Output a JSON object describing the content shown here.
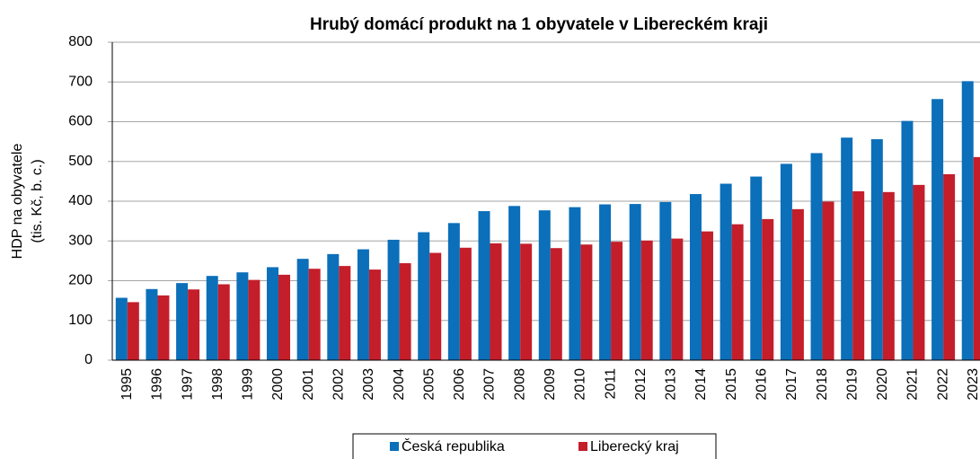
{
  "chart_data": {
    "type": "bar",
    "title": "Hrubý domácí produkt na 1 obyvatele v Libereckém kraji",
    "ylabel": [
      "HDP na obyvatele",
      "(tis. Kč, b. c.)"
    ],
    "categories": [
      "1995",
      "1996",
      "1997",
      "1998",
      "1999",
      "2000",
      "2001",
      "2002",
      "2003",
      "2004",
      "2005",
      "2006",
      "2007",
      "2008",
      "2009",
      "2010",
      "2011",
      "2012",
      "2013",
      "2014",
      "2015",
      "2016",
      "2017",
      "2018",
      "2019",
      "2020",
      "2021",
      "2022",
      "2023"
    ],
    "series": [
      {
        "name": "Česká republika",
        "color": "#0b6fba",
        "values": [
          157,
          179,
          194,
          212,
          221,
          234,
          255,
          267,
          279,
          303,
          322,
          345,
          375,
          388,
          377,
          385,
          392,
          393,
          398,
          418,
          444,
          462,
          494,
          521,
          560,
          556,
          602,
          657,
          702
        ]
      },
      {
        "name": "Liberecký kraj",
        "color": "#c41e2a",
        "values": [
          146,
          163,
          178,
          191,
          202,
          215,
          230,
          237,
          228,
          244,
          270,
          283,
          294,
          293,
          282,
          291,
          298,
          301,
          306,
          324,
          342,
          355,
          380,
          399,
          425,
          423,
          441,
          468,
          511
        ]
      }
    ],
    "ylim": [
      0,
      800
    ],
    "yticks": [
      0,
      100,
      200,
      300,
      400,
      500,
      600,
      700,
      800
    ],
    "grid": true,
    "legend": "bottom"
  }
}
